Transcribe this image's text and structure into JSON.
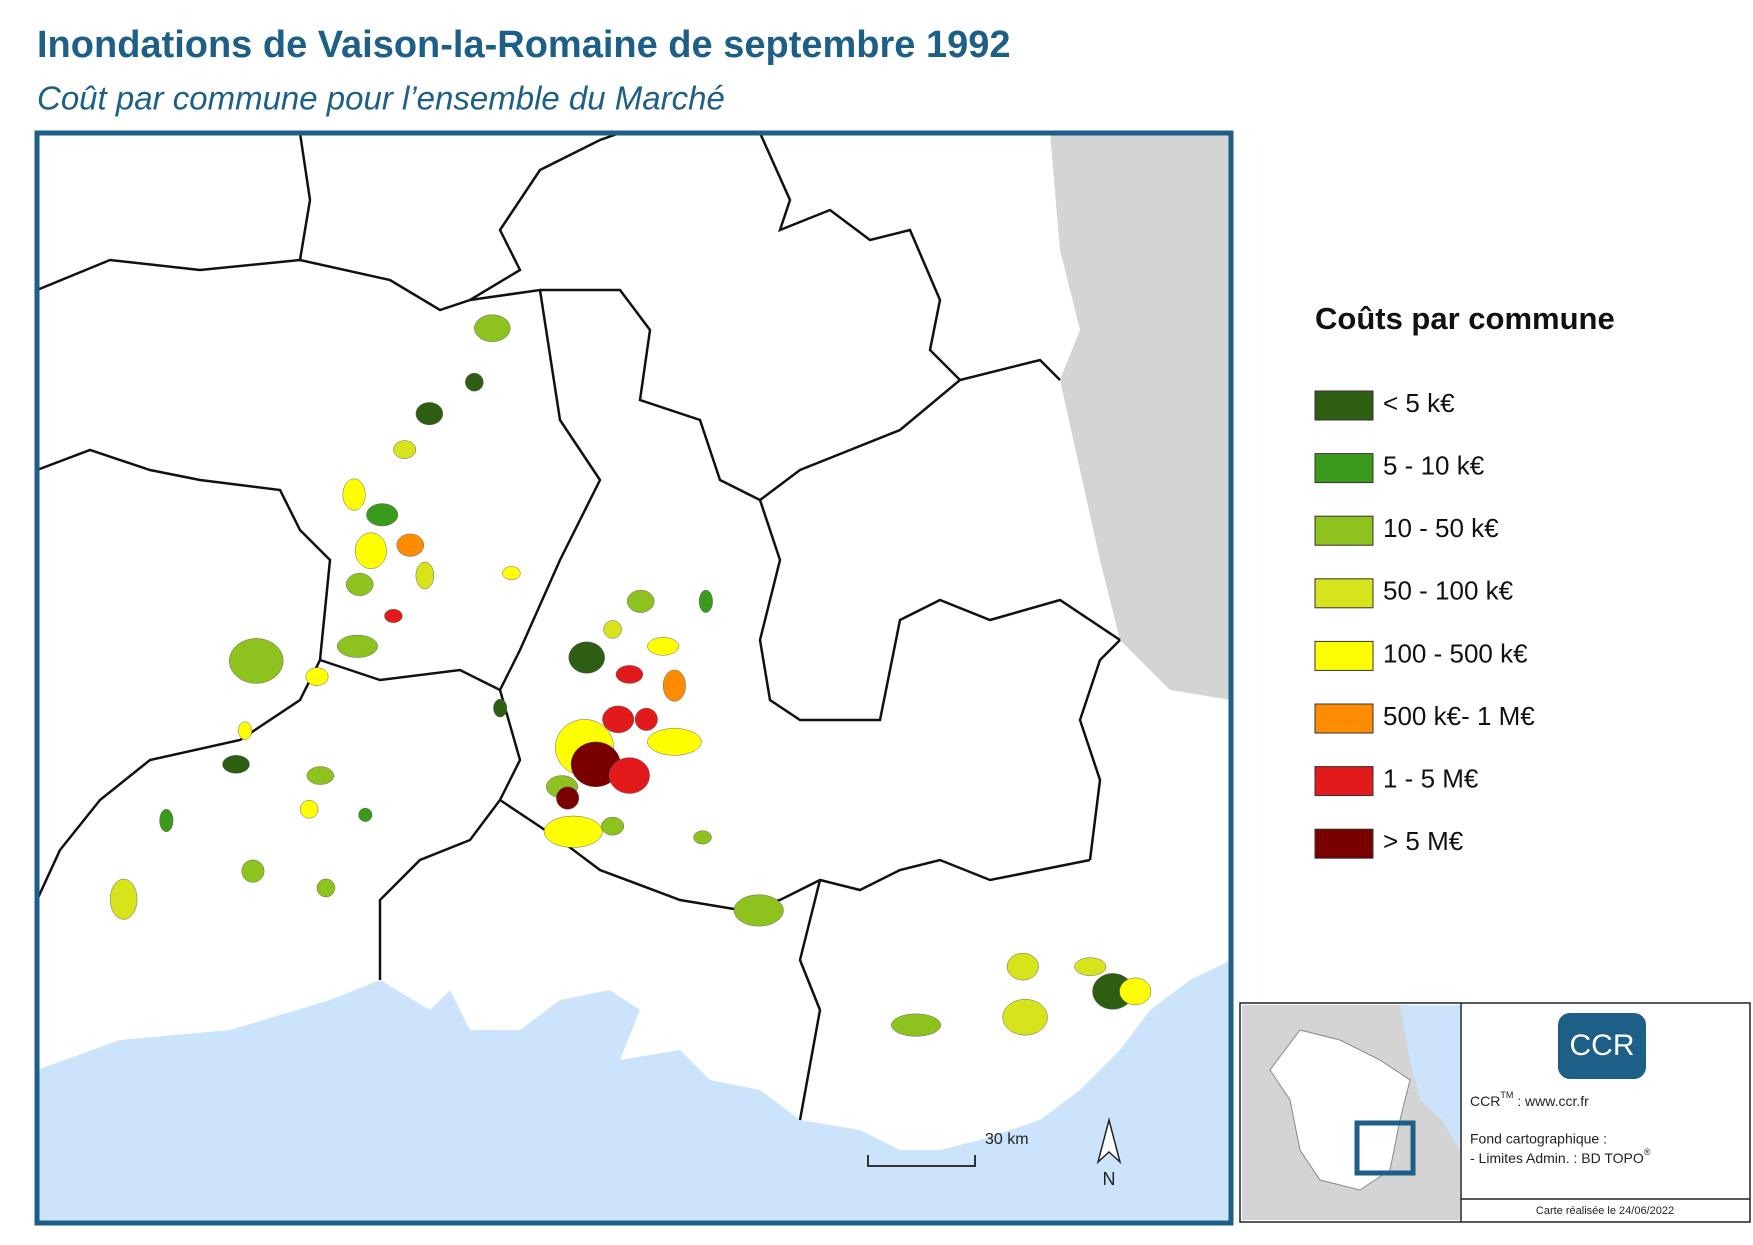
{
  "header": {
    "title": "Inondations de Vaison-la-Romaine de septembre 1992",
    "subtitle": "Coût par commune pour l’ensemble du Marché"
  },
  "legend": {
    "title": "Coûts par commune",
    "items": [
      {
        "label": "< 5 k€",
        "color": "#2d5e12"
      },
      {
        "label": "5 - 10 k€",
        "color": "#3a9a1c"
      },
      {
        "label": "10 - 50 k€",
        "color": "#8ec21e"
      },
      {
        "label": "50 - 100 k€",
        "color": "#d7e41c"
      },
      {
        "label": "100 - 500 k€",
        "color": "#ffff00"
      },
      {
        "label": "500 k€- 1 M€",
        "color": "#ff8c00"
      },
      {
        "label": "1 - 5 M€",
        "color": "#e31a1c"
      },
      {
        "label": "> 5 M€",
        "color": "#7a0000"
      }
    ]
  },
  "map": {
    "scale_label": "30 km",
    "north_label": "N"
  },
  "inset": {
    "logo": "CCR",
    "credit_name": "CCR",
    "credit_mark": "TM",
    "credit_site": " : www.ccr.fr",
    "source_title": "Fond cartographique :",
    "source_line": "- Limites Admin. : BD TOPO",
    "source_mark": "®",
    "date": "Carte réalisée le 24/06/2022"
  }
}
